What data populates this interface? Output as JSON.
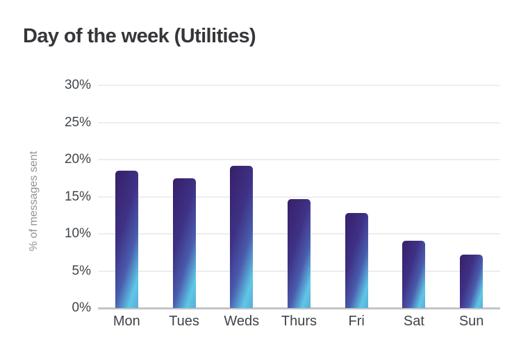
{
  "title": "Day of the week (Utilities)",
  "colors": {
    "title-color": "#343639",
    "tick-color": "#3e444a",
    "axis-title-color": "#8f9396",
    "grid-color": "#ededed",
    "baseline-color": "#c3c4c6",
    "background": "#ffffff",
    "bar-gradient-start": "#371f68",
    "bar-gradient-mid1": "#3e3185",
    "bar-gradient-mid2": "#4a5cad",
    "bar-gradient-cyan": "#5ec7e6",
    "bar-gradient-end": "#5fa9d8"
  },
  "chart_data": {
    "type": "bar",
    "title": "Day of the week (Utilities)",
    "categories": [
      "Mon",
      "Tues",
      "Weds",
      "Thurs",
      "Fri",
      "Sat",
      "Sun"
    ],
    "values": [
      18.5,
      17.5,
      19.2,
      14.7,
      12.8,
      9.1,
      7.2
    ],
    "unit": "%",
    "xlabel": "",
    "ylabel": "% of messages sent",
    "ylim": [
      0,
      30
    ],
    "ytick_step": 5,
    "yticks": [
      "30%",
      "25%",
      "20%",
      "15%",
      "10%",
      "5%",
      "0%"
    ],
    "grid": "horizontal gridlines on",
    "legend": "none",
    "bar_gradient": [
      "#371f68",
      "#3e3185",
      "#4a5cad",
      "#5ec7e6",
      "#5fa9d8"
    ],
    "bar_gradient_angle_deg": 107
  }
}
